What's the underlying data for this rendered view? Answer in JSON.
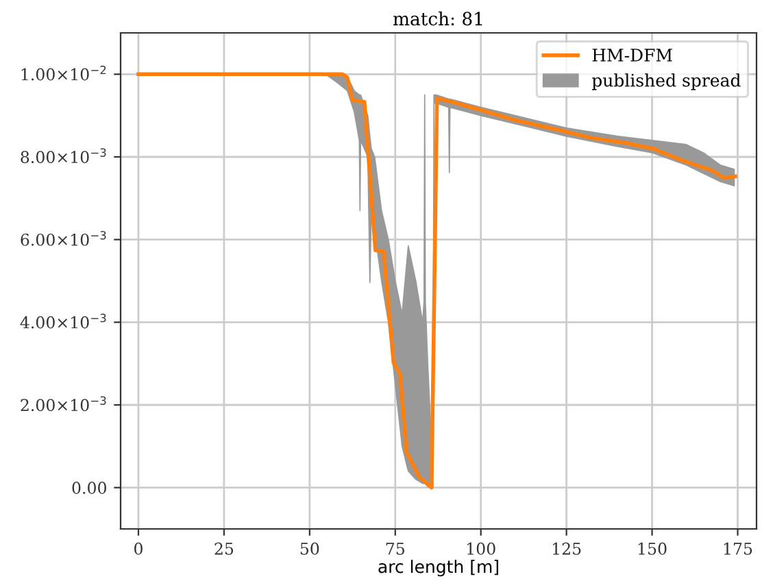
{
  "chart_data": {
    "type": "line",
    "title": "match: 81",
    "xlabel": "arc length [m]",
    "xlim": [
      -5.2,
      180.5
    ],
    "ylim": [
      -0.001,
      0.011
    ],
    "xticks": [
      0,
      25,
      50,
      75,
      100,
      125,
      150,
      175
    ],
    "yticks": [
      {
        "value": 0,
        "label": "0.00"
      },
      {
        "value": 0.002,
        "label": "2.00×10$^{−3}$"
      },
      {
        "value": 0.004,
        "label": "4.00×10$^{−3}$"
      },
      {
        "value": 0.006,
        "label": "6.00×10$^{−3}$"
      },
      {
        "value": 0.008,
        "label": "8.00×10$^{−3}$"
      },
      {
        "value": 0.01,
        "label": "1.00×10$^{−2}$"
      }
    ],
    "grid": true,
    "legend": "top right",
    "series": [
      {
        "name": "HM-DFM",
        "color": "#ff7f0e",
        "x": [
          0,
          59.6,
          61,
          62.5,
          66,
          69.2,
          71.6,
          74.5,
          76.4,
          78.3,
          82,
          85.6,
          87.2,
          93,
          101,
          110,
          125,
          131.6,
          142.3,
          150.3,
          158.3,
          167.6,
          171,
          174.3
        ],
        "values": [
          0.01,
          0.01,
          0.00992,
          0.00937,
          0.00933,
          0.00574,
          0.00571,
          0.00302,
          0.00275,
          0.00086,
          0.00026,
          0,
          0.00942,
          0.0093,
          0.00911,
          0.00889,
          0.00861,
          0.00847,
          0.00834,
          0.0082,
          0.00793,
          0.00767,
          0.00749,
          0.00753
        ]
      },
      {
        "name": "published spread",
        "type": "area",
        "color": "#999999",
        "x": [
          0,
          55,
          58,
          61,
          63,
          64.5,
          64.7,
          64.9,
          67,
          67.6,
          68,
          69,
          71,
          73,
          75,
          77,
          78.8,
          81,
          83,
          83.4,
          83.6,
          83.8,
          84.5,
          86,
          86.3,
          87,
          90.6,
          90.8,
          91,
          100,
          110,
          125,
          140,
          150,
          160,
          165,
          170,
          174
        ],
        "lower": [
          0.00998,
          0.00998,
          0.0098,
          0.0096,
          0.0091,
          0.0084,
          0.0067,
          0.0084,
          0.008,
          0.00496,
          0.0066,
          0.0062,
          0.005,
          0.004,
          0.0025,
          0.001,
          0.0004,
          0.0002,
          0.0001,
          0.0001,
          0.0001,
          0.0001,
          2e-05,
          0,
          0.0093,
          0.0093,
          0.0092,
          0.00762,
          0.0092,
          0.009,
          0.0088,
          0.0085,
          0.00825,
          0.0081,
          0.0078,
          0.0076,
          0.0074,
          0.0073
        ],
        "values": [
          null,
          null,
          null,
          null,
          null,
          null,
          null,
          null,
          null,
          null,
          null,
          null,
          null,
          null,
          null,
          null,
          null,
          null,
          null,
          null,
          null,
          null,
          null,
          null,
          null,
          null,
          null,
          null,
          null,
          null,
          null,
          null,
          null,
          null,
          null,
          null,
          null,
          null
        ],
        "upper": [
          0.01,
          0.01,
          0.01,
          0.00995,
          0.0096,
          0.0095,
          0.0095,
          0.0095,
          0.009,
          0.0085,
          0.0082,
          0.008,
          0.0067,
          0.006,
          0.005,
          0.0042,
          0.00585,
          0.005,
          0.004,
          0.0045,
          0.0095,
          0.0045,
          0.003,
          0.0003,
          0.0095,
          0.0095,
          0.0094,
          0.0094,
          0.0094,
          0.0092,
          0.009,
          0.0087,
          0.0085,
          0.0084,
          0.0083,
          0.0081,
          0.0078,
          0.0077
        ]
      }
    ]
  }
}
